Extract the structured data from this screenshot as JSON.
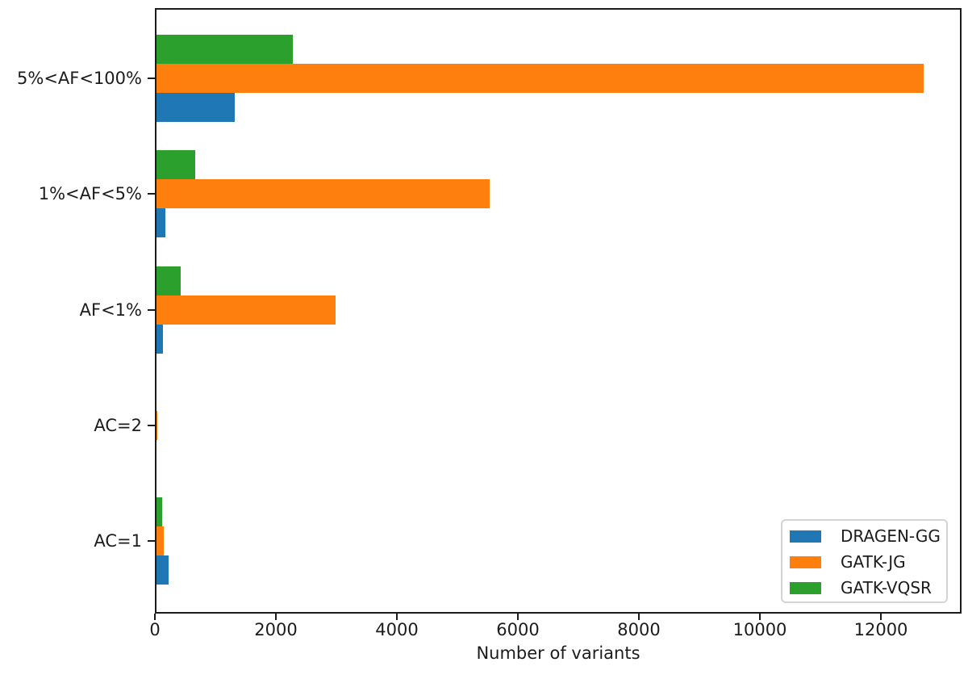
{
  "chart_data": {
    "type": "bar",
    "orientation": "horizontal",
    "title": "",
    "xlabel": "Number of variants",
    "ylabel": "",
    "xlim": [
      0,
      13333
    ],
    "xticks": [
      0,
      2000,
      4000,
      6000,
      8000,
      10000,
      12000
    ],
    "grid": false,
    "legend_position": "lower right",
    "categories": [
      "5%<AF<100%",
      "1%<AF<5%",
      "AF<1%",
      "AC=2",
      "AC=1"
    ],
    "series": [
      {
        "name": "DRAGEN-GG",
        "color": "#1f77b4",
        "values": [
          1320,
          170,
          130,
          10,
          230
        ]
      },
      {
        "name": "GATK-JG",
        "color": "#ff7f0e",
        "values": [
          12700,
          5530,
          2990,
          40,
          140
        ]
      },
      {
        "name": "GATK-VQSR",
        "color": "#2ca02c",
        "values": [
          2280,
          670,
          420,
          10,
          120
        ]
      }
    ],
    "series_row_order_top_to_bottom": [
      "GATK-VQSR",
      "GATK-JG",
      "DRAGEN-GG"
    ]
  }
}
